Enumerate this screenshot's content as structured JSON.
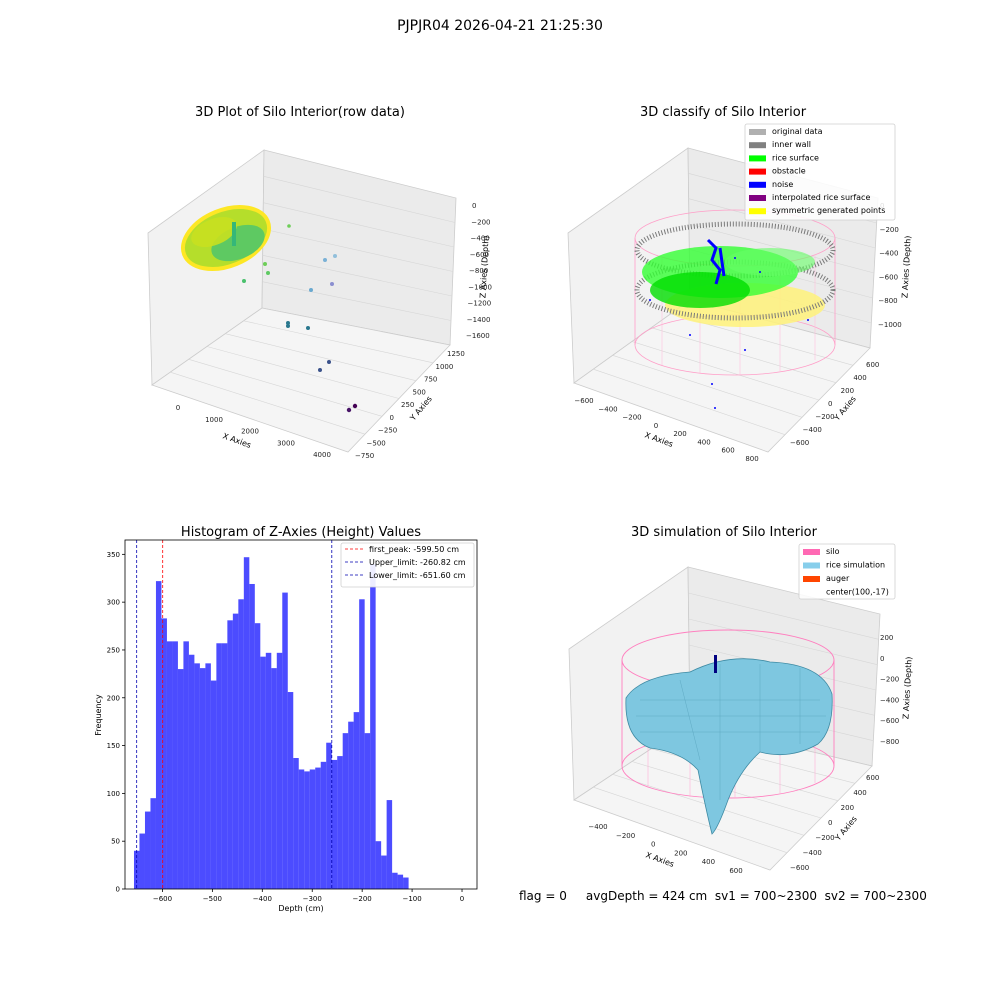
{
  "figure": {
    "suptitle": "PJPJR04 2026-04-21 21:25:30",
    "status_line": "flag = 0     avgDepth = 424 cm  sv1 = 700~2300  sv2 = 700~2300"
  },
  "panels": {
    "raw": {
      "title": "3D Plot of Silo Interior(row data)",
      "xlabel": "X Axies",
      "ylabel": "Y Axies",
      "zlabel": "Z Axies (Depth)",
      "xticks": [
        "0",
        "1000",
        "2000",
        "3000",
        "4000"
      ],
      "yticks": [
        "1250",
        "1000",
        "750",
        "500",
        "250",
        "0",
        "−250",
        "−500",
        "−750"
      ],
      "zticks": [
        "0",
        "−200",
        "−400",
        "−600",
        "−800",
        "−1000",
        "−1200",
        "−1400",
        "−1600"
      ]
    },
    "classify": {
      "title": "3D classify of Silo Interior",
      "xlabel": "X Axies",
      "ylabel": "Y Axies",
      "zlabel": "Z Axies (Depth)",
      "xticks": [
        "−600",
        "−400",
        "−200",
        "0",
        "200",
        "400",
        "600",
        "800"
      ],
      "yticks": [
        "600",
        "400",
        "200",
        "0",
        "−200",
        "−400",
        "−600"
      ],
      "zticks": [
        "0",
        "−200",
        "−400",
        "−600",
        "−800",
        "−1000"
      ],
      "legend": [
        {
          "label": "original data",
          "color": "#b0b0b0"
        },
        {
          "label": "inner wall",
          "color": "#808080"
        },
        {
          "label": "rice surface",
          "color": "#00ff00"
        },
        {
          "label": "obstacle",
          "color": "#ff0000"
        },
        {
          "label": "noise",
          "color": "#0000ff"
        },
        {
          "label": "interpolated rice surface",
          "color": "#800080"
        },
        {
          "label": "symmetric generated points",
          "color": "#ffff00"
        }
      ]
    },
    "simulation": {
      "title": "3D simulation of Silo Interior",
      "xlabel": "X Axies",
      "ylabel": "Y Axies",
      "zlabel": "Z Axies (Depth)",
      "xticks": [
        "−400",
        "−200",
        "0",
        "200",
        "400",
        "600"
      ],
      "yticks": [
        "600",
        "400",
        "200",
        "0",
        "−200",
        "−400",
        "−600"
      ],
      "zticks": [
        "200",
        "0",
        "−200",
        "−400",
        "−600",
        "−800"
      ],
      "legend": [
        {
          "label": "silo",
          "color": "#ff69b4"
        },
        {
          "label": "rice simulation",
          "color": "#87ceeb"
        },
        {
          "label": "auger",
          "color": "#ff4500"
        },
        {
          "label": "center(100,-17)",
          "color": ""
        }
      ]
    }
  },
  "chart_data": [
    {
      "type": "histogram",
      "title": "Histogram of Z-Axies (Height) Values",
      "xlabel": "Depth (cm)",
      "ylabel": "Frequency",
      "xlim": [
        -675,
        30
      ],
      "ylim": [
        0,
        365
      ],
      "xticks": [
        -600,
        -500,
        -400,
        -300,
        -200,
        -100,
        0
      ],
      "yticks": [
        0,
        50,
        100,
        150,
        200,
        250,
        300,
        350
      ],
      "bin_start": -657,
      "bin_width": 11,
      "counts": [
        40,
        58,
        81,
        95,
        322,
        283,
        259,
        259,
        230,
        259,
        245,
        236,
        231,
        236,
        218,
        257,
        257,
        281,
        288,
        303,
        347,
        319,
        278,
        243,
        247,
        231,
        247,
        310,
        206,
        137,
        125,
        123,
        125,
        127,
        133,
        153,
        135,
        139,
        163,
        175,
        185,
        303,
        163,
        340,
        50,
        35,
        93,
        17,
        15,
        12
      ],
      "bar_color": "#0000ff",
      "reference_lines": [
        {
          "name": "first_peak: -599.50 cm",
          "value": -599.5,
          "color": "#ff0000"
        },
        {
          "name": "Upper_limit: -260.82 cm",
          "value": -260.82,
          "color": "#0000b0"
        },
        {
          "name": "Lower_limit: -651.60 cm",
          "value": -651.6,
          "color": "#0000b0"
        }
      ],
      "legend_position": "top-right"
    }
  ]
}
